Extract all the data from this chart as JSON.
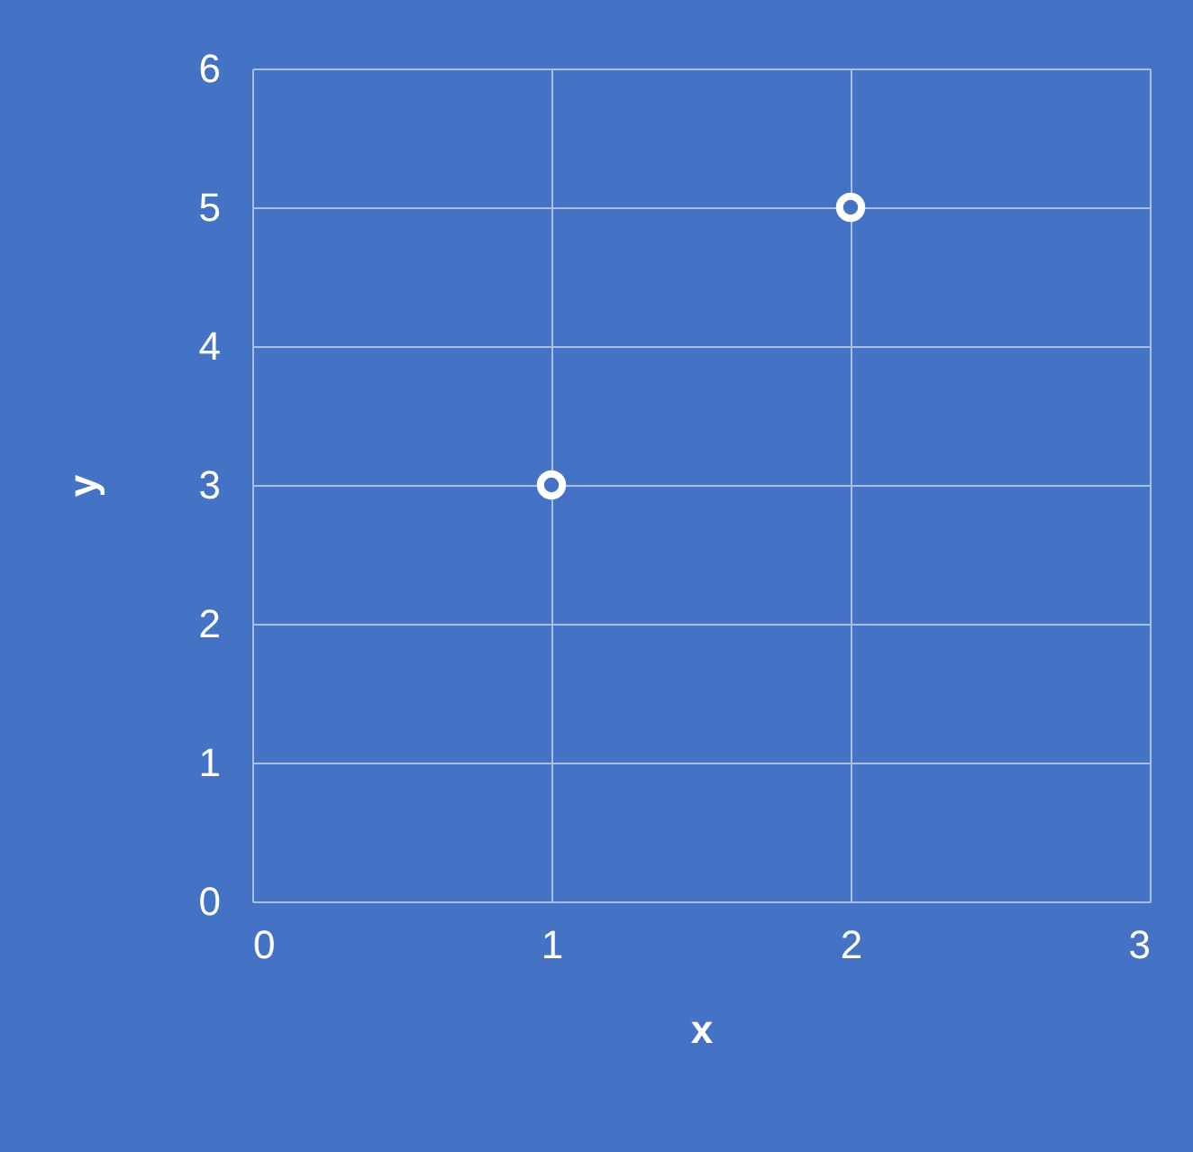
{
  "chart_data": {
    "type": "scatter",
    "xlabel": "x",
    "ylabel": "y",
    "x": [
      1,
      2
    ],
    "values": [
      3,
      5
    ],
    "color": "#ffffff",
    "xlim": [
      0,
      3
    ],
    "ylim": [
      0,
      6
    ],
    "xticks": [
      0,
      1,
      2,
      3
    ],
    "yticks": [
      0,
      1,
      2,
      3,
      4,
      5,
      6
    ],
    "grid": true,
    "marker": "circle"
  }
}
